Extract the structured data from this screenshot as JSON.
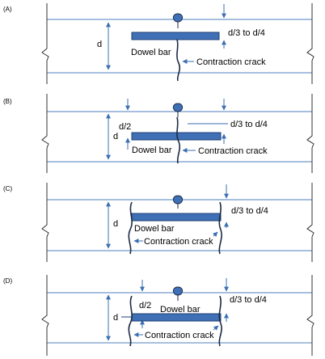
{
  "colors": {
    "slab_line": "#4f7fbf",
    "dimension": "#3a6fb2",
    "dowel_fill": "#3f6fb5",
    "dowel_stroke": "#1f3f73",
    "crack": "#1c2b45",
    "break_line": "#333333"
  },
  "icons": {
    "dowel_cap": "sealant-bulb-icon",
    "slab_break": "break-line-icon"
  },
  "panels": [
    {
      "label": "(A)",
      "depth_label": "d",
      "dowel_label": "Dowel bar",
      "crack_label": "Contraction crack",
      "spacing_label": "d/3 to d/4"
    },
    {
      "label": "(B)",
      "depth_label": "d",
      "half_depth_label": "d/2",
      "dowel_label": "Dowel bar",
      "crack_label": "Contraction crack",
      "spacing_label": "d/3 to d/4"
    },
    {
      "label": "(C)",
      "depth_label": "d",
      "dowel_label": "Dowel bar",
      "crack_label": "Contraction crack",
      "spacing_label": "d/3 to d/4"
    },
    {
      "label": "(D)",
      "depth_label": "d",
      "half_depth_label": "d/2",
      "dowel_label": "Dowel bar",
      "crack_label": "Contraction crack",
      "spacing_label": "d/3 to d/4"
    }
  ]
}
